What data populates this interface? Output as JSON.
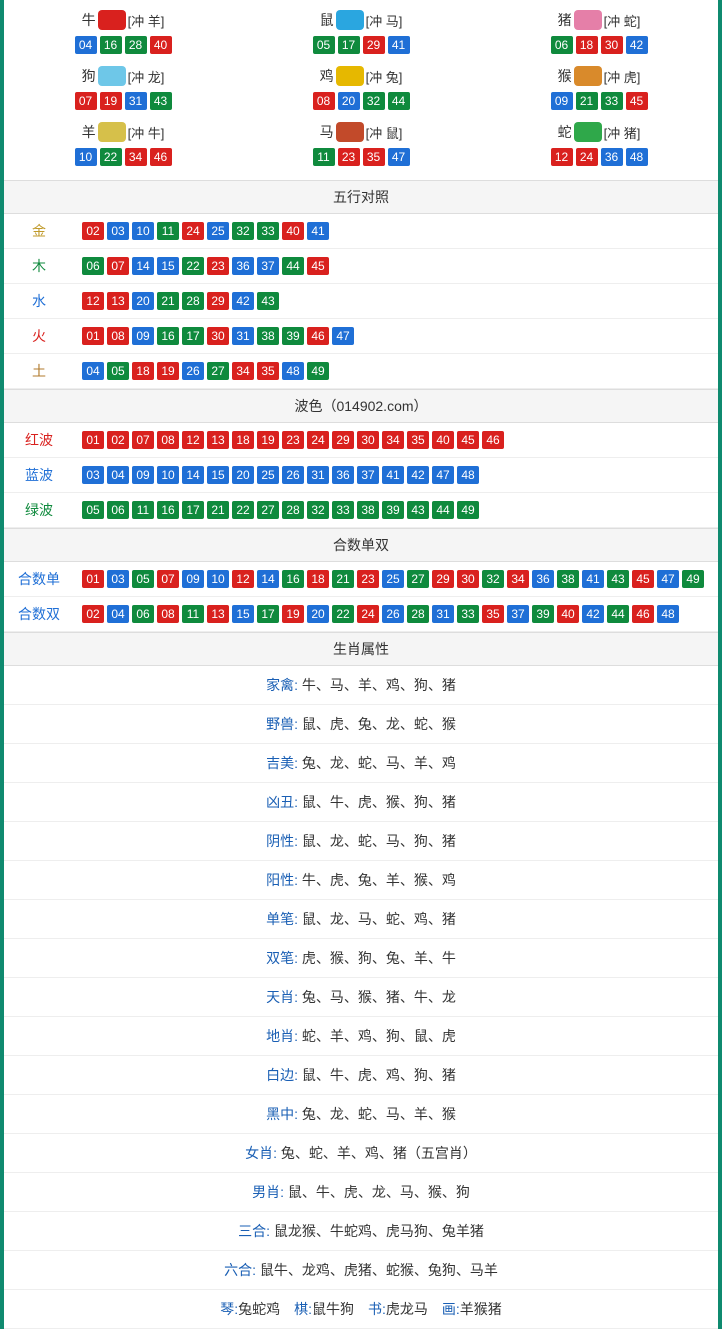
{
  "colors": {
    "red": "#d9211e",
    "blue": "#1f6fd6",
    "green": "#0f8a3d",
    "head_bg": "#f5f5f5",
    "border": "#dddddd",
    "outer": "#0f8a6f"
  },
  "num_color_map": {
    "red": [
      "01",
      "02",
      "07",
      "08",
      "12",
      "13",
      "18",
      "19",
      "23",
      "24",
      "29",
      "30",
      "34",
      "35",
      "40",
      "45",
      "46"
    ],
    "blue": [
      "03",
      "04",
      "09",
      "10",
      "14",
      "15",
      "20",
      "25",
      "26",
      "31",
      "36",
      "37",
      "41",
      "42",
      "47",
      "48"
    ],
    "green": [
      "05",
      "06",
      "11",
      "16",
      "17",
      "21",
      "22",
      "27",
      "28",
      "32",
      "33",
      "38",
      "39",
      "43",
      "44",
      "49"
    ]
  },
  "zodiac_cells": [
    {
      "name": "牛",
      "conflict": "[冲 羊]",
      "icon_color": "#d9211e",
      "nums": [
        "04",
        "16",
        "28",
        "40"
      ]
    },
    {
      "name": "鼠",
      "conflict": "[冲 马]",
      "icon_color": "#2aa6e0",
      "nums": [
        "05",
        "17",
        "29",
        "41"
      ]
    },
    {
      "name": "猪",
      "conflict": "[冲 蛇]",
      "icon_color": "#e57fa8",
      "nums": [
        "06",
        "18",
        "30",
        "42"
      ]
    },
    {
      "name": "狗",
      "conflict": "[冲 龙]",
      "icon_color": "#6ec7e8",
      "nums": [
        "07",
        "19",
        "31",
        "43"
      ]
    },
    {
      "name": "鸡",
      "conflict": "[冲 兔]",
      "icon_color": "#e6b800",
      "nums": [
        "08",
        "20",
        "32",
        "44"
      ]
    },
    {
      "name": "猴",
      "conflict": "[冲 虎]",
      "icon_color": "#d98a2b",
      "nums": [
        "09",
        "21",
        "33",
        "45"
      ]
    },
    {
      "name": "羊",
      "conflict": "[冲 牛]",
      "icon_color": "#d6c04a",
      "nums": [
        "10",
        "22",
        "34",
        "46"
      ]
    },
    {
      "name": "马",
      "conflict": "[冲 鼠]",
      "icon_color": "#c24a2a",
      "nums": [
        "11",
        "23",
        "35",
        "47"
      ]
    },
    {
      "name": "蛇",
      "conflict": "[冲 猪]",
      "icon_color": "#2fa84a",
      "nums": [
        "12",
        "24",
        "36",
        "48"
      ]
    }
  ],
  "wuxing": {
    "title": "五行对照",
    "rows": [
      {
        "label": "金",
        "label_color": "#c09a2b",
        "nums": [
          "02",
          "03",
          "10",
          "11",
          "24",
          "25",
          "32",
          "33",
          "40",
          "41"
        ]
      },
      {
        "label": "木",
        "label_color": "#0f8a3d",
        "nums": [
          "06",
          "07",
          "14",
          "15",
          "22",
          "23",
          "36",
          "37",
          "44",
          "45"
        ]
      },
      {
        "label": "水",
        "label_color": "#1f6fd6",
        "nums": [
          "12",
          "13",
          "20",
          "21",
          "28",
          "29",
          "42",
          "43"
        ]
      },
      {
        "label": "火",
        "label_color": "#d9211e",
        "nums": [
          "01",
          "08",
          "09",
          "16",
          "17",
          "30",
          "31",
          "38",
          "39",
          "46",
          "47"
        ]
      },
      {
        "label": "土",
        "label_color": "#b07a2b",
        "nums": [
          "04",
          "05",
          "18",
          "19",
          "26",
          "27",
          "34",
          "35",
          "48",
          "49"
        ]
      }
    ]
  },
  "bose": {
    "title": "波色（014902.com）",
    "rows": [
      {
        "label": "红波",
        "label_color": "#d9211e",
        "nums": [
          "01",
          "02",
          "07",
          "08",
          "12",
          "13",
          "18",
          "19",
          "23",
          "24",
          "29",
          "30",
          "34",
          "35",
          "40",
          "45",
          "46"
        ]
      },
      {
        "label": "蓝波",
        "label_color": "#1f6fd6",
        "nums": [
          "03",
          "04",
          "09",
          "10",
          "14",
          "15",
          "20",
          "25",
          "26",
          "31",
          "36",
          "37",
          "41",
          "42",
          "47",
          "48"
        ]
      },
      {
        "label": "绿波",
        "label_color": "#0f8a3d",
        "nums": [
          "05",
          "06",
          "11",
          "16",
          "17",
          "21",
          "22",
          "27",
          "28",
          "32",
          "33",
          "38",
          "39",
          "43",
          "44",
          "49"
        ]
      }
    ]
  },
  "heshu": {
    "title": "合数单双",
    "rows": [
      {
        "label": "合数单",
        "label_color": "#1f6fd6",
        "nums": [
          "01",
          "03",
          "05",
          "07",
          "09",
          "10",
          "12",
          "14",
          "16",
          "18",
          "21",
          "23",
          "25",
          "27",
          "29",
          "30",
          "32",
          "34",
          "36",
          "38",
          "41",
          "43",
          "45",
          "47",
          "49"
        ]
      },
      {
        "label": "合数双",
        "label_color": "#1f6fd6",
        "nums": [
          "02",
          "04",
          "06",
          "08",
          "11",
          "13",
          "15",
          "17",
          "19",
          "20",
          "22",
          "24",
          "26",
          "28",
          "31",
          "33",
          "35",
          "37",
          "39",
          "40",
          "42",
          "44",
          "46",
          "48"
        ]
      }
    ]
  },
  "shuxing": {
    "title": "生肖属性",
    "rows": [
      {
        "label": "家禽:",
        "label_color": "#1a5fb4",
        "value": "牛、马、羊、鸡、狗、猪"
      },
      {
        "label": "野兽:",
        "label_color": "#1a5fb4",
        "value": "鼠、虎、兔、龙、蛇、猴"
      },
      {
        "label": "吉美:",
        "label_color": "#1a5fb4",
        "value": "兔、龙、蛇、马、羊、鸡"
      },
      {
        "label": "凶丑:",
        "label_color": "#1a5fb4",
        "value": "鼠、牛、虎、猴、狗、猪"
      },
      {
        "label": "阴性:",
        "label_color": "#1a5fb4",
        "value": "鼠、龙、蛇、马、狗、猪"
      },
      {
        "label": "阳性:",
        "label_color": "#1a5fb4",
        "value": "牛、虎、兔、羊、猴、鸡"
      },
      {
        "label": "单笔:",
        "label_color": "#1a5fb4",
        "value": "鼠、龙、马、蛇、鸡、猪"
      },
      {
        "label": "双笔:",
        "label_color": "#1a5fb4",
        "value": "虎、猴、狗、兔、羊、牛"
      },
      {
        "label": "天肖:",
        "label_color": "#1a5fb4",
        "value": "兔、马、猴、猪、牛、龙"
      },
      {
        "label": "地肖:",
        "label_color": "#1a5fb4",
        "value": "蛇、羊、鸡、狗、鼠、虎"
      },
      {
        "label": "白边:",
        "label_color": "#1a5fb4",
        "value": "鼠、牛、虎、鸡、狗、猪"
      },
      {
        "label": "黑中:",
        "label_color": "#1a5fb4",
        "value": "兔、龙、蛇、马、羊、猴"
      },
      {
        "label": "女肖:",
        "label_color": "#1a5fb4",
        "value": "兔、蛇、羊、鸡、猪（五宫肖）"
      },
      {
        "label": "男肖:",
        "label_color": "#1a5fb4",
        "value": "鼠、牛、虎、龙、马、猴、狗"
      },
      {
        "label": "三合:",
        "label_color": "#1a5fb4",
        "value": "鼠龙猴、牛蛇鸡、虎马狗、兔羊猪"
      },
      {
        "label": "六合:",
        "label_color": "#1a5fb4",
        "value": "鼠牛、龙鸡、虎猪、蛇猴、兔狗、马羊"
      }
    ],
    "last_row": [
      {
        "label": "琴:",
        "label_color": "#1a5fb4",
        "value": "兔蛇鸡"
      },
      {
        "label": "棋:",
        "label_color": "#1a5fb4",
        "value": "鼠牛狗"
      },
      {
        "label": "书:",
        "label_color": "#1a5fb4",
        "value": "虎龙马"
      },
      {
        "label": "画:",
        "label_color": "#1a5fb4",
        "value": "羊猴猪"
      }
    ]
  }
}
